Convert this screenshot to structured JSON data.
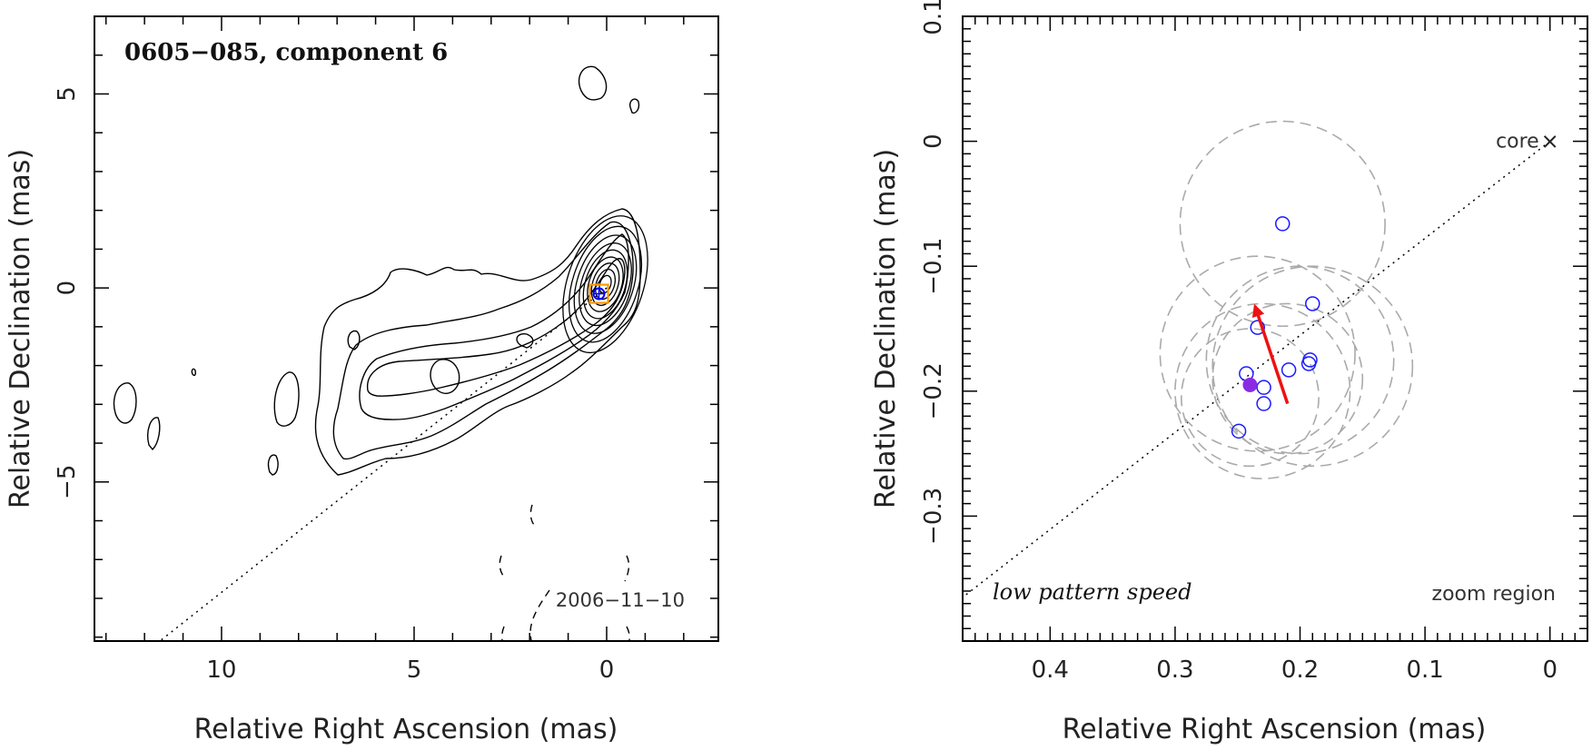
{
  "chart_data": [
    {
      "type": "contour",
      "title": "0605−085, component 6",
      "epoch_label": "2006−11−10",
      "xlabel": "Relative Right Ascension (mas)",
      "ylabel": "Relative Declination (mas)",
      "xlim": [
        13.3,
        -2.9
      ],
      "ylim": [
        -9.1,
        7.0
      ],
      "xticks": [
        10,
        5,
        0
      ],
      "xtick_labels": [
        "10",
        "5",
        "0"
      ],
      "yticks": [
        5,
        0,
        -5
      ],
      "ytick_labels": [
        "5",
        "0",
        "−5"
      ],
      "jet_axis": {
        "from": [
          0.0,
          0.0
        ],
        "to": [
          11.6,
          -9.1
        ],
        "style": "dotted"
      },
      "component_marker": {
        "x": 0.2,
        "y": -0.15,
        "marker": "orange square with blue circle"
      },
      "contour_colors": {
        "positive": "#000000",
        "negative": "#000000"
      },
      "marker_color": "#ff9900",
      "component_color": "#0000ff"
    },
    {
      "type": "scatter",
      "subtitle": "zoom region",
      "pattern_label": "low pattern speed",
      "core_label": "core",
      "xlabel": "Relative Right Ascension (mas)",
      "ylabel": "Relative Declination (mas)",
      "xlim": [
        0.47,
        -0.03
      ],
      "ylim": [
        -0.4,
        0.1
      ],
      "xticks": [
        0.4,
        0.3,
        0.2,
        0.1,
        0
      ],
      "xtick_labels": [
        "0.4",
        "0.3",
        "0.2",
        "0.1",
        "0"
      ],
      "yticks": [
        0.1,
        0,
        -0.1,
        -0.2,
        -0.3
      ],
      "ytick_labels": [
        "0.1",
        "0",
        "−0.1",
        "−0.2",
        "−0.3"
      ],
      "core": {
        "x": 0.0,
        "y": 0.0
      },
      "jet_axis": {
        "from": [
          0.0,
          0.0
        ],
        "to": [
          0.47,
          -0.365
        ],
        "style": "dotted"
      },
      "positions": [
        {
          "x": 0.214,
          "y": -0.066
        },
        {
          "x": 0.19,
          "y": -0.13
        },
        {
          "x": 0.234,
          "y": -0.149
        },
        {
          "x": 0.192,
          "y": -0.175
        },
        {
          "x": 0.193,
          "y": -0.178
        },
        {
          "x": 0.209,
          "y": -0.183
        },
        {
          "x": 0.243,
          "y": -0.186
        },
        {
          "x": 0.229,
          "y": -0.197
        },
        {
          "x": 0.229,
          "y": -0.21
        },
        {
          "x": 0.249,
          "y": -0.232
        }
      ],
      "reference_position": {
        "x": 0.24,
        "y": -0.195
      },
      "uncertainty_circles": [
        {
          "x": 0.214,
          "y": -0.066,
          "r": 0.082
        },
        {
          "x": 0.19,
          "y": -0.18,
          "r": 0.08
        },
        {
          "x": 0.234,
          "y": -0.17,
          "r": 0.078
        },
        {
          "x": 0.2,
          "y": -0.175,
          "r": 0.075
        },
        {
          "x": 0.23,
          "y": -0.2,
          "r": 0.07
        },
        {
          "x": 0.21,
          "y": -0.19,
          "r": 0.06
        },
        {
          "x": 0.24,
          "y": -0.205,
          "r": 0.055
        }
      ],
      "velocity_arrow": {
        "from": [
          0.21,
          -0.21
        ],
        "to": [
          0.236,
          -0.132
        ]
      },
      "colors": {
        "points": "#1a1aff",
        "reference": "#8a2be2",
        "circles": "#aaaaaa",
        "arrow": "#ee1111"
      }
    }
  ]
}
